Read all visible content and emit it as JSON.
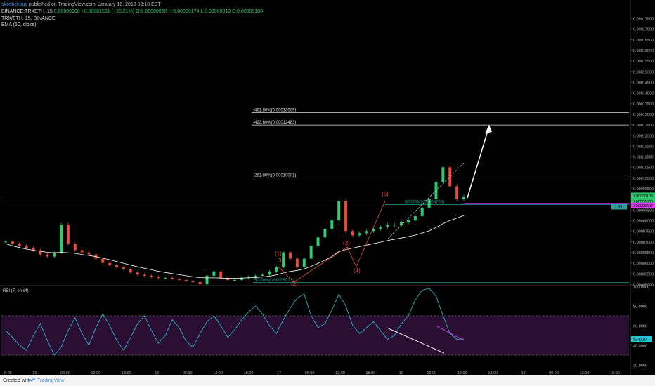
{
  "header": {
    "username": "skoshekous",
    "publish_text": "published on TradingView.com, January 18, 2018 08:18 EST",
    "symbol": "BINANCE:TRXETH, 15",
    "change": "0.00009108 +0.00001531 (+20.21%)",
    "ohlc": "O:0.00009050 H:0.00009174 L:0.00009010 C:0.00009108",
    "title_main": "TRX/ETH, 15, BINANCE",
    "indicator": "EMA (50, close)"
  },
  "price_axis": {
    "labels": [
      "0.00017500",
      "0.00017000",
      "0.00016500",
      "0.00016000",
      "0.00015500",
      "0.00015000",
      "0.00014500",
      "0.00014000",
      "0.00013500",
      "0.00013000",
      "0.00012500",
      "0.00012000",
      "0.00011500",
      "0.00011000",
      "0.00010500",
      "0.00010000",
      "0.00009500",
      "0.00009000",
      "0.00008500",
      "0.00008000",
      "0.00007500",
      "0.00007000",
      "0.00006500",
      "0.00006000",
      "0.00005500",
      "0.00005000"
    ],
    "current_price": "0.00009108",
    "current_secondary": "0.00009000",
    "magenta_price": "0.00008807",
    "countdown": "11:39"
  },
  "fib_levels": [
    {
      "label": "-461.80%(0.00013069)",
      "value": 0.00013069
    },
    {
      "label": "-423.60%(0.00012483)",
      "value": 0.00012483
    },
    {
      "label": "-261.80%(0.00010001)",
      "value": 0.00010001
    },
    {
      "label": "50.00%(0.00008750)",
      "value": 8.75e-05
    },
    {
      "label": "50.00%(0.00005073)",
      "value": 5.073e-05
    }
  ],
  "wave_labels": [
    "(1)",
    "(2)",
    "(3)",
    "(4)",
    "(5)",
    "3"
  ],
  "rsi": {
    "title": "RSI (7, ohlc4)",
    "axis_labels": [
      "100.0000",
      "80.0000",
      "60.0000",
      "40.0000",
      "20.0000"
    ],
    "current": "46.4210"
  },
  "time_axis": {
    "labels": [
      "6:00",
      "16",
      "06:00",
      "12:00",
      "18:00",
      "16",
      "06:00",
      "12:00",
      "18:00",
      "17",
      "06:00",
      "12:00",
      "18:00",
      "18",
      "06:00",
      "12:00",
      "18:00",
      "19",
      "06:00",
      "12:00",
      "18:00"
    ]
  },
  "footer": {
    "created": "Created with",
    "brand": "TradingView"
  },
  "colors": {
    "up": "#2ecc71",
    "down": "#e74c3c",
    "wave": "#e74c3c",
    "fib": "#26a69a",
    "ema": "#ffffff",
    "rsi": "#26c6da",
    "rsi_band": "#2b0f33",
    "magenta": "#e040fb"
  },
  "chart_data": {
    "type": "line",
    "price_series": [
      7e-05,
      6.9e-05,
      6.8e-05,
      6.7e-05,
      6.6e-05,
      6.4e-05,
      6.3e-05,
      6.5e-05,
      7.8e-05,
      6.9e-05,
      6.6e-05,
      6.5e-05,
      6.4e-05,
      6.2e-05,
      6e-05,
      5.9e-05,
      5.8e-05,
      5.7e-05,
      5.55e-05,
      5.45e-05,
      5.4e-05,
      5.35e-05,
      5.3e-05,
      5.3e-05,
      5.25e-05,
      5.2e-05,
      5.15e-05,
      5.1e-05,
      5e-05,
      5.4e-05,
      5.6e-05,
      5.3e-05,
      5.2e-05,
      5.2e-05,
      5.3e-05,
      5.35e-05,
      5.4e-05,
      5.45e-05,
      5.6e-05,
      5.8e-05,
      6.5e-05,
      6.2e-05,
      5.8e-05,
      6.2e-05,
      6.8e-05,
      7.2e-05,
      7.6e-05,
      8e-05,
      8.9e-05,
      7.5e-05,
      7.3e-05,
      7.4e-05,
      7.5e-05,
      7.6e-05,
      7.7e-05,
      7.8e-05,
      7.8e-05,
      7.9e-05,
      8e-05,
      8.2e-05,
      8.6e-05,
      9e-05,
      9.8e-05,
      0.000105,
      9.6e-05,
      9e-05,
      9.11e-05
    ],
    "ema_series": [
      6.9e-05,
      6.8e-05,
      6.72e-05,
      6.65e-05,
      6.6e-05,
      6.55e-05,
      6.5e-05,
      6.48e-05,
      6.5e-05,
      6.48e-05,
      6.45e-05,
      6.4e-05,
      6.35e-05,
      6.3e-05,
      6.22e-05,
      6.15e-05,
      6.07e-05,
      5.98e-05,
      5.9e-05,
      5.82e-05,
      5.75e-05,
      5.68e-05,
      5.61e-05,
      5.55e-05,
      5.5e-05,
      5.45e-05,
      5.4e-05,
      5.35e-05,
      5.31e-05,
      5.3e-05,
      5.3e-05,
      5.29e-05,
      5.28e-05,
      5.28e-05,
      5.29e-05,
      5.3e-05,
      5.32e-05,
      5.34e-05,
      5.38e-05,
      5.44e-05,
      5.53e-05,
      5.6e-05,
      5.65e-05,
      5.72e-05,
      5.84e-05,
      5.98e-05,
      6.13e-05,
      6.3e-05,
      6.54e-05,
      6.63e-05,
      6.7e-05,
      6.77e-05,
      6.84e-05,
      6.91e-05,
      6.98e-05,
      7.05e-05,
      7.11e-05,
      7.17e-05,
      7.24e-05,
      7.31e-05,
      7.4e-05,
      7.51e-05,
      7.66e-05,
      7.85e-05,
      7.99e-05,
      8.11e-05,
      8.23e-05
    ],
    "rsi_series": [
      55,
      48,
      40,
      35,
      50,
      62,
      45,
      30,
      38,
      55,
      68,
      52,
      40,
      58,
      72,
      60,
      45,
      35,
      48,
      62,
      70,
      55,
      42,
      50,
      66,
      58,
      44,
      38,
      52,
      64,
      70,
      60,
      48,
      56,
      66,
      74,
      80,
      72,
      60,
      52,
      66,
      78,
      88,
      92,
      70,
      58,
      62,
      76,
      92,
      80,
      60,
      52,
      58,
      64,
      55,
      46,
      50,
      62,
      70,
      86,
      96,
      98,
      90,
      70,
      52,
      46,
      46.4
    ],
    "ylim": [
      5e-05,
      0.000175
    ],
    "rsi_ylim": [
      15,
      100
    ]
  }
}
